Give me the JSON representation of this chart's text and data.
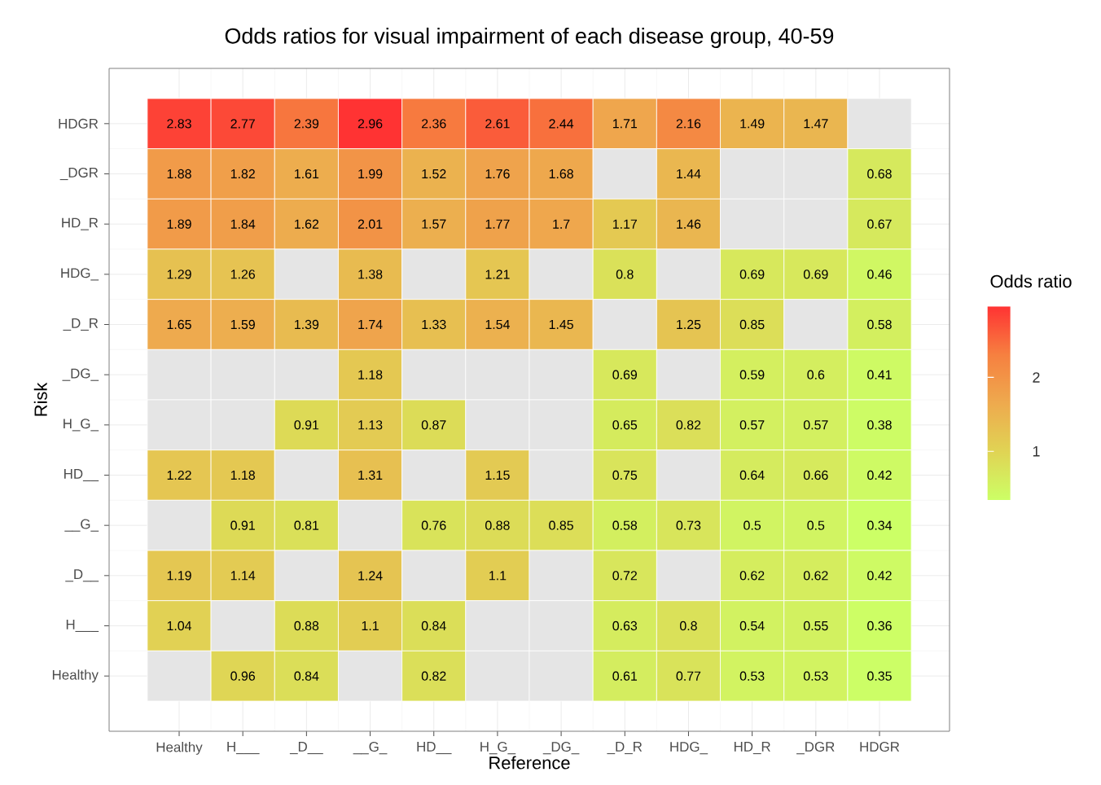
{
  "chart_data": {
    "type": "heatmap",
    "title": "Odds ratios for visual impairment of each disease group, 40-59",
    "xlabel": "Reference",
    "ylabel": "Risk",
    "clabel": "Odds ratio",
    "categories": [
      "Healthy",
      "H___",
      "_D__",
      "__G_",
      "HD__",
      "H_G_",
      "_DG_",
      "_D_R",
      "HDG_",
      "HD_R",
      "_DGR",
      "HDGR"
    ],
    "y_categories": [
      "HDGR",
      "_DGR",
      "HD_R",
      "HDG_",
      "_D_R",
      "_DG_",
      "H_G_",
      "HD__",
      "__G_",
      "_D__",
      "H___",
      "Healthy"
    ],
    "cells": [
      [
        2.83,
        2.77,
        2.39,
        2.96,
        2.36,
        2.61,
        2.44,
        1.71,
        2.16,
        1.49,
        1.47,
        null
      ],
      [
        1.88,
        1.82,
        1.61,
        1.99,
        1.52,
        1.76,
        1.68,
        null,
        1.44,
        null,
        null,
        0.68
      ],
      [
        1.89,
        1.84,
        1.62,
        2.01,
        1.57,
        1.77,
        1.7,
        1.17,
        1.46,
        null,
        null,
        0.67
      ],
      [
        1.29,
        1.26,
        null,
        1.38,
        null,
        1.21,
        null,
        0.8,
        null,
        0.69,
        0.69,
        0.46
      ],
      [
        1.65,
        1.59,
        1.39,
        1.74,
        1.33,
        1.54,
        1.45,
        null,
        1.25,
        0.85,
        null,
        0.58
      ],
      [
        null,
        null,
        null,
        1.18,
        null,
        null,
        null,
        0.69,
        null,
        0.59,
        0.6,
        0.41
      ],
      [
        null,
        null,
        0.91,
        1.13,
        0.87,
        null,
        null,
        0.65,
        0.82,
        0.57,
        0.57,
        0.38
      ],
      [
        1.22,
        1.18,
        null,
        1.31,
        null,
        1.15,
        null,
        0.75,
        null,
        0.64,
        0.66,
        0.42
      ],
      [
        null,
        0.91,
        0.81,
        null,
        0.76,
        0.88,
        0.85,
        0.58,
        0.73,
        0.5,
        0.5,
        0.34
      ],
      [
        1.19,
        1.14,
        null,
        1.24,
        null,
        1.1,
        null,
        0.72,
        null,
        0.62,
        0.62,
        0.42
      ],
      [
        1.04,
        null,
        0.88,
        1.1,
        0.84,
        null,
        null,
        0.63,
        0.8,
        0.54,
        0.55,
        0.36
      ],
      [
        null,
        0.96,
        0.84,
        null,
        0.82,
        null,
        null,
        0.61,
        0.77,
        0.53,
        0.53,
        0.35
      ]
    ],
    "clim": [
      0.34,
      2.96
    ],
    "cticks": [
      1,
      2
    ],
    "data_labels": true,
    "grid": true
  }
}
